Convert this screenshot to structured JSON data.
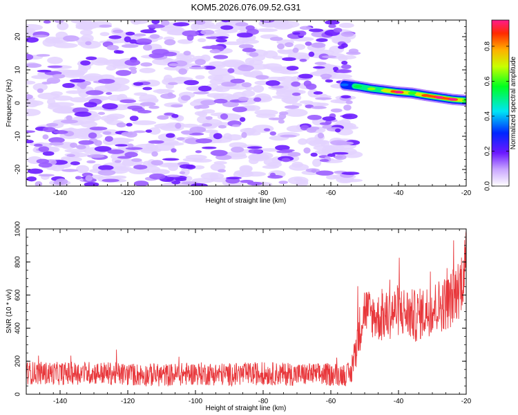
{
  "title": "KOM5.2026.076.09.52.G31",
  "chart_data": [
    {
      "type": "heatmap",
      "name": "spectrogram",
      "xlabel": "Height of straight line (km)",
      "ylabel": "Frequency (Hz)",
      "xlim": [
        -150,
        -20
      ],
      "ylim": [
        -25,
        25
      ],
      "xticks": [
        -140,
        -120,
        -100,
        -80,
        -60,
        -40,
        -20
      ],
      "yticks": [
        -20,
        -10,
        0,
        10,
        20
      ],
      "noise_region_x": [
        -150,
        -53
      ],
      "signal_track": {
        "x": [
          -56,
          -52,
          -48,
          -44,
          -40,
          -36,
          -32,
          -28,
          -24,
          -20
        ],
        "frequency": [
          5.5,
          5.0,
          4.3,
          3.8,
          3.3,
          3.0,
          2.3,
          1.7,
          1.1,
          0.8
        ],
        "amplitude": [
          0.35,
          0.55,
          0.65,
          0.7,
          0.95,
          0.6,
          0.85,
          0.95,
          0.95,
          0.6
        ]
      },
      "colorbar": {
        "label": "Normalized spectral amplitude",
        "range": [
          0,
          0.95
        ],
        "ticks": [
          "0.0",
          "0.2",
          "0.4",
          "0.6",
          "0.8"
        ]
      }
    },
    {
      "type": "line",
      "name": "snr",
      "xlabel": "Height of straight line (km)",
      "ylabel": "SNR (10 * v/v)",
      "xlim": [
        -150,
        -20
      ],
      "ylim": [
        0,
        1000
      ],
      "xticks": [
        -140,
        -120,
        -100,
        -80,
        -60,
        -40,
        -20
      ],
      "yticks": [
        0,
        200,
        400,
        600,
        800,
        1000
      ],
      "color": "#e8373b",
      "series": {
        "x": [
          -150,
          -140,
          -130,
          -120,
          -110,
          -100,
          -90,
          -80,
          -70,
          -60,
          -54,
          -52,
          -50,
          -48,
          -45,
          -40,
          -35,
          -30,
          -25,
          -22,
          -20
        ],
        "mean": [
          130,
          125,
          130,
          120,
          115,
          125,
          120,
          125,
          120,
          120,
          120,
          350,
          520,
          480,
          460,
          510,
          470,
          520,
          560,
          650,
          800
        ],
        "spread": [
          70,
          70,
          70,
          70,
          70,
          70,
          70,
          70,
          70,
          70,
          70,
          150,
          150,
          140,
          150,
          160,
          160,
          160,
          170,
          190,
          200
        ]
      }
    }
  ]
}
